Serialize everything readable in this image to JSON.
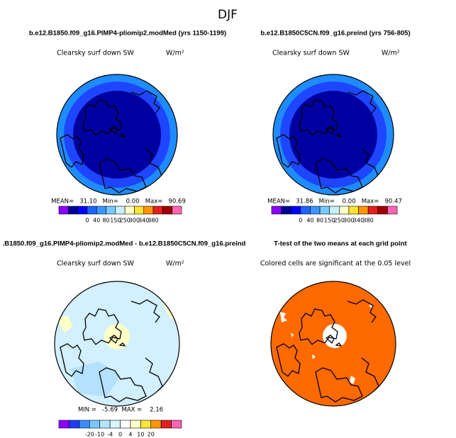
{
  "title": "DJF",
  "panels": [
    {
      "title": "b.e12.B1850.f09_g16.PIMP4-pliomip2.modMed (yrs 1150-1199)",
      "variable": "Clearsky surf down SW",
      "units": "W/m²",
      "stats": "MEAN=   31.10   Min=    0.00   Max=   90.69",
      "colorbar": {
        "colors": [
          "#8c00ff",
          "#000096",
          "#0000ff",
          "#1e64ff",
          "#3c96ff",
          "#78c8ff",
          "#c8f0ff",
          "#ffffc8",
          "#ffe632",
          "#ff9600",
          "#e61e1e",
          "#a00000",
          "#ff64b4"
        ],
        "labels": [
          "0",
          "40",
          "80",
          "150",
          "250",
          "300",
          "340",
          "380"
        ]
      }
    },
    {
      "title": "b.e12.B1850C5CN.f09_g16.preind (yrs 756-805)",
      "variable": "Clearsky surf down SW",
      "units": "W/m²",
      "stats": "MEAN=   31.86   Min=    0.00   Max=   90.47",
      "colorbar": {
        "colors": [
          "#8c00ff",
          "#000096",
          "#0000ff",
          "#1e64ff",
          "#3c96ff",
          "#78c8ff",
          "#c8f0ff",
          "#ffffc8",
          "#ffe632",
          "#ff9600",
          "#e61e1e",
          "#a00000",
          "#ff64b4"
        ],
        "labels": [
          "0",
          "40",
          "80",
          "150",
          "250",
          "300",
          "340",
          "380"
        ]
      }
    },
    {
      "title": ".B1850.f09_g16.PIMP4-pliomip2.modMed - b.e12.B1850C5CN.f09_g16.preind",
      "variable": "Clearsky surf down SW",
      "units": "W/m²",
      "stats": "MIN =   -5.69  MAX =    2.16",
      "colorbar": {
        "colors": [
          "#8c00ff",
          "#1e3cff",
          "#3c8cff",
          "#78c8ff",
          "#b4e6ff",
          "#d7f5ff",
          "#ffffff",
          "#ffffc8",
          "#ffe632",
          "#ff9600",
          "#e61e1e",
          "#ff64b4"
        ],
        "labels": [
          "-20",
          "-10",
          "-4",
          "0",
          "4",
          "10",
          "20"
        ]
      }
    },
    {
      "title": "T-test of the two means at each grid point",
      "variable": "Colored cells are significant at the 0.05 level"
    }
  ]
}
